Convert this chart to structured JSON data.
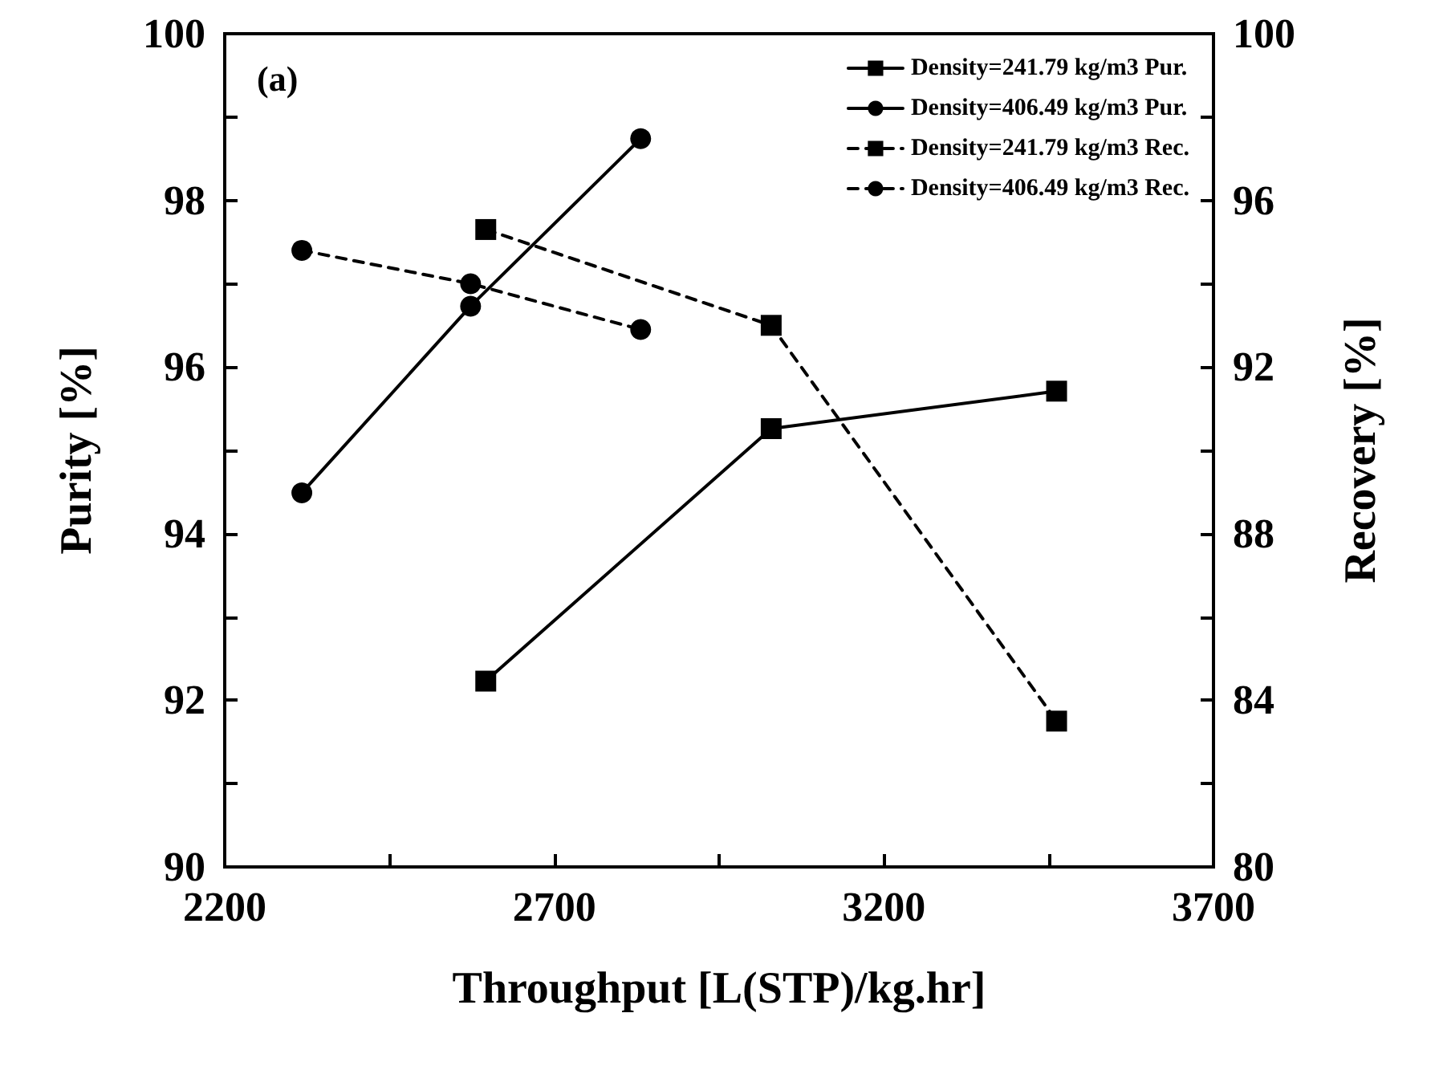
{
  "chart_data": {
    "type": "line",
    "xlabel": "Throughput [L(STP)/kg.hr]",
    "ylabel": "Purity [%]",
    "y2label": "Recovery [%]",
    "annotations": [
      "(a)"
    ],
    "xlim": [
      2200,
      3700
    ],
    "xticks": [
      2200,
      {
        "value": 2450,
        "label": null
      },
      2700,
      {
        "value": 2950,
        "label": null
      },
      3200,
      {
        "value": 3450,
        "label": null
      },
      3700
    ],
    "ylim": [
      90,
      100
    ],
    "yticks": [
      90,
      {
        "value": 91,
        "label": null
      },
      92,
      {
        "value": 93,
        "label": null
      },
      94,
      {
        "value": 95,
        "label": null
      },
      96,
      {
        "value": 97,
        "label": null
      },
      98,
      {
        "value": 99,
        "label": null
      },
      100
    ],
    "y2lim": [
      80,
      100
    ],
    "y2ticks": [
      80,
      {
        "value": 82,
        "label": null
      },
      84,
      {
        "value": 86,
        "label": null
      },
      88,
      {
        "value": 90,
        "label": null
      },
      92,
      {
        "value": 94,
        "label": null
      },
      96,
      {
        "value": 98,
        "label": null
      },
      100
    ],
    "grid": false,
    "legend": "top right",
    "series": [
      {
        "name": "Density=241.79 kg/m3 Pur.",
        "color": "#000000",
        "marker": "square",
        "line_style": "solid",
        "x": [
          2596,
          3029,
          3462
        ],
        "values": [
          92.23,
          95.26,
          95.71
        ]
      },
      {
        "name": "Density=406.49 kg/m3 Pur.",
        "color": "#000000",
        "marker": "circle",
        "line_style": "solid",
        "x": [
          2317,
          2573,
          2831
        ],
        "values": [
          94.49,
          96.73,
          98.74
        ]
      },
      {
        "name": "Density=241.79 kg/m3 Rec.",
        "color": "#000000",
        "marker": "square",
        "line_style": "dashed",
        "axis": "y2",
        "x": [
          2596,
          3029,
          3462
        ],
        "values": [
          95.3,
          93.0,
          83.5
        ]
      },
      {
        "name": "Density=406.49 kg/m3 Rec.",
        "color": "#000000",
        "marker": "circle",
        "line_style": "dashed",
        "axis": "y2",
        "x": [
          2317,
          2573,
          2831
        ],
        "values": [
          94.8,
          94.0,
          92.9
        ]
      }
    ]
  }
}
